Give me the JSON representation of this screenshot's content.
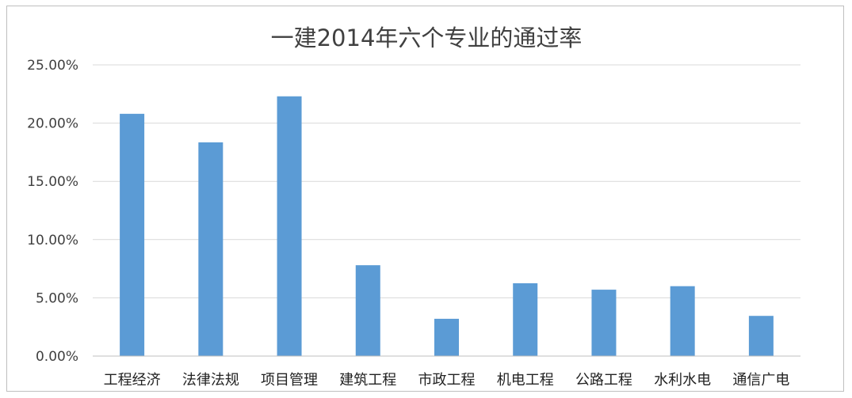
{
  "chart_data": {
    "type": "bar",
    "title": "一建2014年六个专业的通过率",
    "xlabel": "",
    "ylabel": "",
    "categories": [
      "工程经济",
      "法律法规",
      "项目管理",
      "建筑工程",
      "市政工程",
      "机电工程",
      "公路工程",
      "水利水电",
      "通信广电"
    ],
    "values": [
      0.208,
      0.1835,
      0.223,
      0.078,
      0.032,
      0.0625,
      0.057,
      0.06,
      0.0345
    ],
    "ylim": [
      0,
      0.25
    ],
    "yticks": [
      0,
      0.05,
      0.1,
      0.15,
      0.2,
      0.25
    ],
    "ytick_labels": [
      "0.00%",
      "5.00%",
      "10.00%",
      "15.00%",
      "20.00%",
      "25.00%"
    ],
    "grid": true,
    "legend": "none",
    "bar_color": "#5b9bd5"
  }
}
